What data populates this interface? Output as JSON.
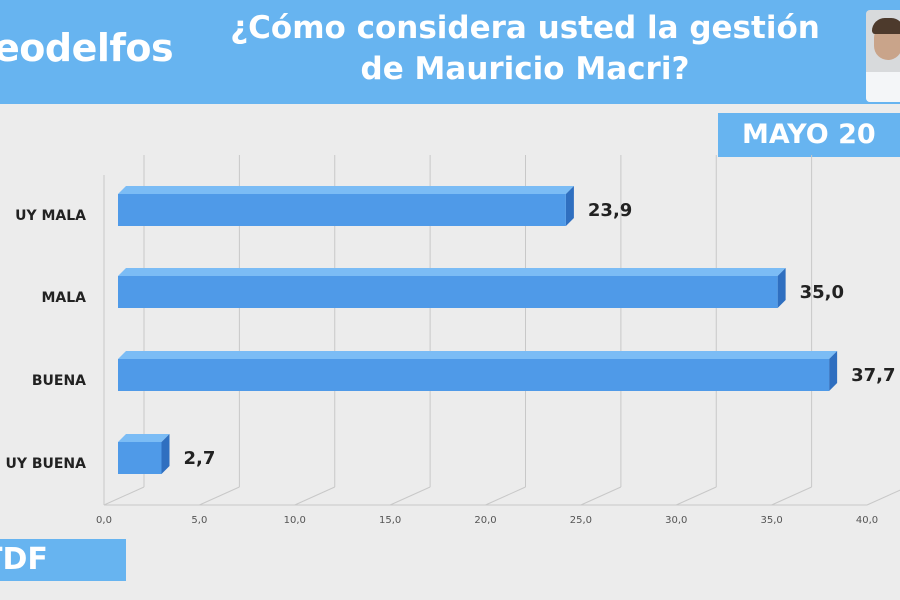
{
  "header": {
    "brand": "eodelfos",
    "title_line1": "¿Cómo considera usted la gestión",
    "title_line2": "de Mauricio Macri?"
  },
  "date_badge": "MAYO 20",
  "footer_badge": "TDF",
  "colors": {
    "header_bg": "#67b4f0",
    "bar_front": "#4f9ae8",
    "bar_top": "#7bbcf5",
    "bar_side": "#2f6fc0",
    "background": "#ececec"
  },
  "chart_data": {
    "type": "bar",
    "orientation": "horizontal",
    "categories": [
      "UY MALA",
      "MALA",
      "BUENA",
      "UY BUENA"
    ],
    "values": [
      23.9,
      35.0,
      37.7,
      2.7
    ],
    "value_labels": [
      "23,9",
      "35,0",
      "37,7",
      "2,7"
    ],
    "xticks": [
      "0,0",
      "5,0",
      "10,0",
      "15,0",
      "20,0",
      "25,0",
      "30,0",
      "35,0",
      "40,0"
    ],
    "xlim": [
      0,
      40
    ],
    "grid": true,
    "title": "¿Cómo considera usted la gestión de Mauricio Macri?"
  }
}
